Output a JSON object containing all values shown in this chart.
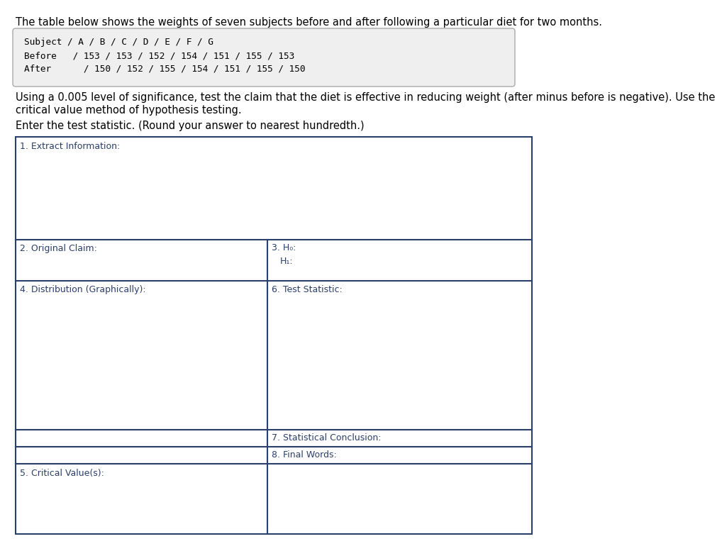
{
  "title_text": "The table below shows the weights of seven subjects before and after following a particular diet for two months.",
  "table_line1": "Subject / A / B / C / D / E / F / G",
  "table_line2": "Before   / 153 / 153 / 152 / 154 / 151 / 155 / 153",
  "table_line3": "After      / 150 / 152 / 155 / 154 / 151 / 155 / 150",
  "instruction1": "Using a 0.005 level of significance, test the claim that the diet is effective in reducing weight (after minus before is negative). Use the",
  "instruction2": "critical value method of hypothesis testing.",
  "instruction3": "Enter the test statistic. (Round your answer to nearest hundredth.)",
  "cell1_label": "1. Extract Information:",
  "cell2_label": "2. Original Claim:",
  "cell3_label": "3. H₀:",
  "cell3b_label": "H₁:",
  "cell4_label": "4. Distribution (Graphically):",
  "cell5_label": "5. Critical Value(s):",
  "cell6_label": "6. Test Statistic:",
  "cell7_label": "7. Statistical Conclusion:",
  "cell8_label": "8. Final Words:",
  "table_bg": "#efefef",
  "box_border_color": "#2b3f6b",
  "label_color": "#2b3f6b",
  "text_color": "#000000",
  "bg_color": "#ffffff",
  "font_size_title": 10.5,
  "font_size_table": 9.2,
  "font_size_label": 9.0
}
